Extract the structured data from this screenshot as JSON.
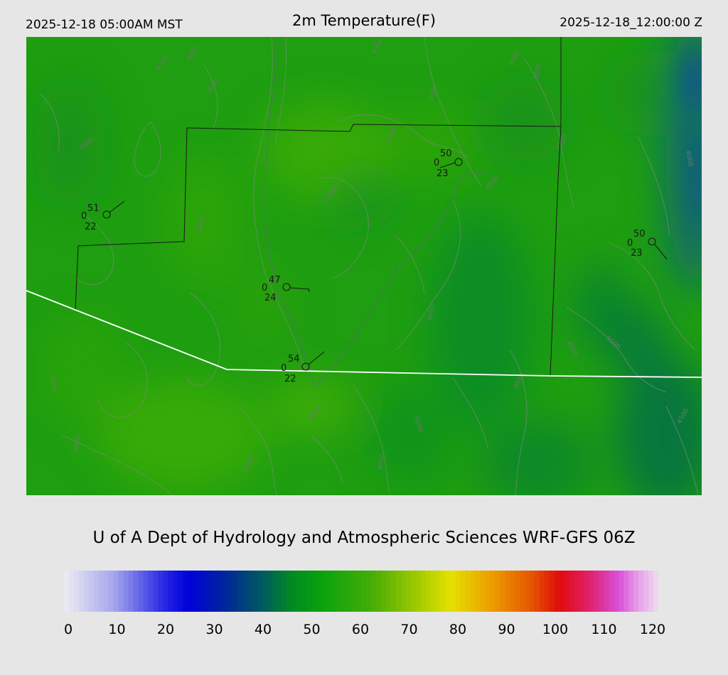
{
  "header": {
    "local_time": "2025-12-18 05:00AM MST",
    "title": "2m Temperature(F)",
    "valid_time": "2025-12-18_12:00:00 Z"
  },
  "credit": "U of A Dept of Hydrology and Atmospheric Sciences WRF-GFS 06Z",
  "colorbar": {
    "ticks": [
      "0",
      "10",
      "20",
      "30",
      "40",
      "50",
      "60",
      "70",
      "80",
      "90",
      "100",
      "110",
      "120"
    ],
    "min": 0,
    "max": 120,
    "stops": [
      {
        "v": 0,
        "c": "#ececf4"
      },
      {
        "v": 10,
        "c": "#a6a6ec"
      },
      {
        "v": 20,
        "c": "#2a2ae4"
      },
      {
        "v": 25,
        "c": "#0000dc"
      },
      {
        "v": 32,
        "c": "#0022a0"
      },
      {
        "v": 40,
        "c": "#005a60"
      },
      {
        "v": 46,
        "c": "#008a22"
      },
      {
        "v": 52,
        "c": "#0aa20e"
      },
      {
        "v": 62,
        "c": "#44ac06"
      },
      {
        "v": 72,
        "c": "#a8cc00"
      },
      {
        "v": 78,
        "c": "#e4e200"
      },
      {
        "v": 86,
        "c": "#eca000"
      },
      {
        "v": 94,
        "c": "#e45a00"
      },
      {
        "v": 100,
        "c": "#e00c0c"
      },
      {
        "v": 106,
        "c": "#e0206a"
      },
      {
        "v": 112,
        "c": "#d850d8"
      },
      {
        "v": 116,
        "c": "#e8a0e8"
      },
      {
        "v": 120,
        "c": "#f0dcf0"
      }
    ]
  },
  "stations": [
    {
      "temp": "51",
      "dew": "22",
      "wind": "0"
    },
    {
      "temp": "50",
      "dew": "23",
      "wind": "0"
    },
    {
      "temp": "50",
      "dew": "23",
      "wind": "0"
    },
    {
      "temp": "47",
      "dew": "24",
      "wind": "0"
    },
    {
      "temp": "54",
      "dew": "22",
      "wind": "0"
    }
  ],
  "contour_labels": [
    "4000",
    "4000",
    "4000",
    "4000",
    "4500",
    "4500",
    "5000",
    "5000",
    "4000",
    "4500",
    "5000",
    "4000",
    "4500",
    "5000",
    "4000",
    "4500",
    "5000",
    "4000",
    "4500",
    "4000",
    "5000",
    "4500",
    "4000",
    "5000",
    "4000"
  ],
  "colors": {
    "background": "#e6e6e6",
    "field_base": "#1e9e10",
    "warm_green": "#4cb406",
    "cool_teal": "#07774a",
    "cold_blue": "#0a5a86",
    "county_line": "#1a1a1a",
    "state_line": "#ffffff",
    "contour": "#7a8a7a"
  }
}
